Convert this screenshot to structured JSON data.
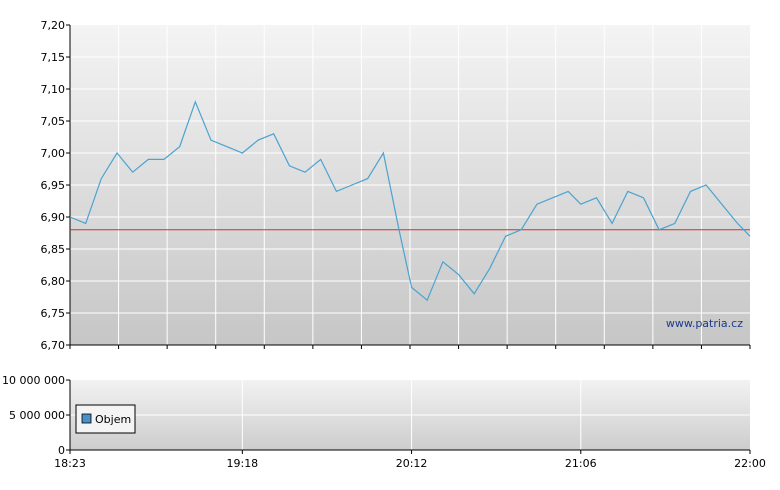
{
  "watermark": "www.patria.cz",
  "chart_data": [
    {
      "type": "line",
      "title": "",
      "xlabel": "",
      "ylabel": "",
      "ylim": [
        6.7,
        7.2
      ],
      "y_ticks": [
        "7,20",
        "7,15",
        "7,10",
        "7,05",
        "7,00",
        "6,95",
        "6,90",
        "6,85",
        "6,80",
        "6,75",
        "6,70"
      ],
      "y_tick_values": [
        7.2,
        7.15,
        7.1,
        7.05,
        7.0,
        6.95,
        6.9,
        6.85,
        6.8,
        6.75,
        6.7
      ],
      "grid": true,
      "reference_line": 6.88,
      "colors": {
        "line": "#4aa3d0",
        "reference": "#cc3333",
        "plot_top": "#f2f2f2",
        "plot_bottom": "#c8c8c8"
      },
      "series": [
        {
          "x": [
            "18:23",
            "18:28",
            "18:33",
            "18:38",
            "18:43",
            "18:48",
            "18:53",
            "18:58",
            "19:03",
            "19:08",
            "19:13",
            "19:18",
            "19:23",
            "19:28",
            "19:33",
            "19:38",
            "19:43",
            "19:48",
            "19:53",
            "19:58",
            "20:03",
            "20:08",
            "20:12",
            "20:17",
            "20:22",
            "20:27",
            "20:32",
            "20:37",
            "20:42",
            "20:47",
            "20:52",
            "20:57",
            "21:02",
            "21:06",
            "21:11",
            "21:16",
            "21:21",
            "21:26",
            "21:31",
            "21:36",
            "21:41",
            "21:46",
            "21:51",
            "21:56",
            "22:00"
          ],
          "values": [
            6.9,
            6.89,
            6.96,
            7.0,
            6.97,
            6.99,
            6.99,
            7.01,
            7.08,
            7.02,
            7.01,
            7.0,
            7.02,
            7.03,
            6.98,
            6.97,
            6.99,
            6.94,
            6.95,
            6.96,
            7.0,
            6.88,
            6.79,
            6.77,
            6.83,
            6.81,
            6.78,
            6.82,
            6.87,
            6.88,
            6.92,
            6.93,
            6.94,
            6.92,
            6.93,
            6.89,
            6.94,
            6.93,
            6.88,
            6.89,
            6.94,
            6.95,
            6.92,
            6.89,
            6.87
          ]
        }
      ]
    },
    {
      "type": "bar",
      "title": "",
      "xlabel": "",
      "ylabel": "",
      "ylim": [
        0,
        10000000
      ],
      "y_ticks": [
        "10 000 000",
        "5 000 000",
        "0"
      ],
      "y_tick_values": [
        10000000,
        5000000,
        0
      ],
      "x_ticks": [
        "18:23",
        "19:18",
        "20:12",
        "21:06",
        "22:00"
      ],
      "legend": {
        "placement": "top-left",
        "label": "Objem",
        "color": "#4a90c8"
      },
      "grid": true,
      "series": [
        {
          "name": "Objem",
          "values": []
        }
      ]
    }
  ]
}
